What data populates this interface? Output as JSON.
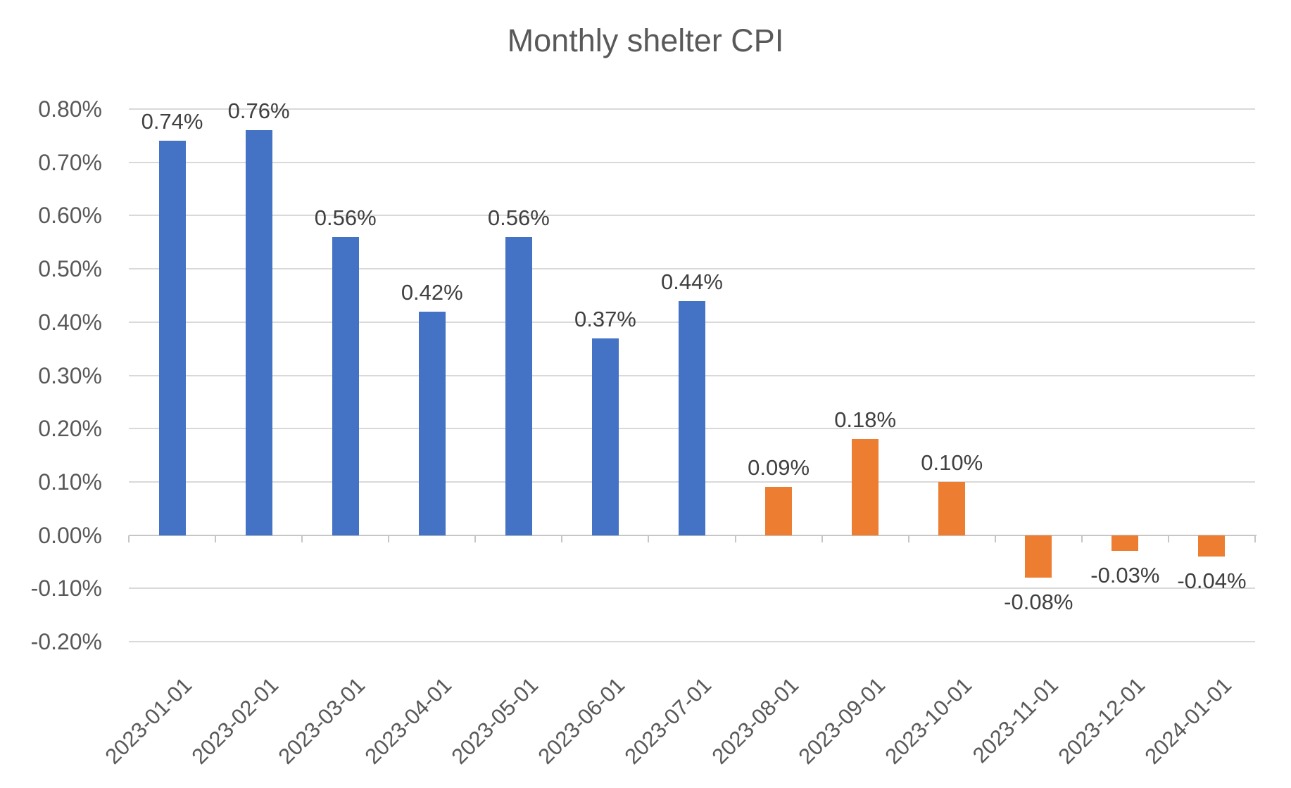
{
  "chart_data": {
    "type": "bar",
    "title": "Monthly shelter CPI",
    "categories": [
      "2023-01-01",
      "2023-02-01",
      "2023-03-01",
      "2023-04-01",
      "2023-05-01",
      "2023-06-01",
      "2023-07-01",
      "2023-08-01",
      "2023-09-01",
      "2023-10-01",
      "2023-11-01",
      "2023-12-01",
      "2024-01-01"
    ],
    "values": [
      0.74,
      0.76,
      0.56,
      0.42,
      0.56,
      0.37,
      0.44,
      0.09,
      0.18,
      0.1,
      -0.08,
      -0.03,
      -0.04
    ],
    "point_labels": [
      "0.74%",
      "0.76%",
      "0.56%",
      "0.42%",
      "0.56%",
      "0.37%",
      "0.44%",
      "0.09%",
      "0.18%",
      "0.10%",
      "-0.08%",
      "-0.03%",
      "-0.04%"
    ],
    "bar_colors": [
      "#4472C4",
      "#4472C4",
      "#4472C4",
      "#4472C4",
      "#4472C4",
      "#4472C4",
      "#4472C4",
      "#ED7D31",
      "#ED7D31",
      "#ED7D31",
      "#ED7D31",
      "#ED7D31",
      "#ED7D31"
    ],
    "series_colors": {
      "blue_2023_jan_jul": "#4472C4",
      "orange_2023_aug_2024_jan": "#ED7D31"
    },
    "xlabel": "",
    "ylabel": "",
    "ylim": [
      -0.2,
      0.8
    ],
    "ytick_values": [
      0.8,
      0.7,
      0.6,
      0.5,
      0.4,
      0.3,
      0.2,
      0.1,
      0.0,
      -0.1,
      -0.2
    ],
    "ytick_labels": [
      "0.80%",
      "0.70%",
      "0.60%",
      "0.50%",
      "0.40%",
      "0.30%",
      "0.20%",
      "0.10%",
      "0.00%",
      "-0.10%",
      "-0.20%"
    ],
    "grid": true,
    "legend": "none",
    "style_colors": {
      "grid": "#D9D9D9",
      "axis_line": "#C6C6C6",
      "axis_text": "#595959",
      "data_label_text": "#404040",
      "title_text": "#595959",
      "background": "#FFFFFF"
    }
  }
}
